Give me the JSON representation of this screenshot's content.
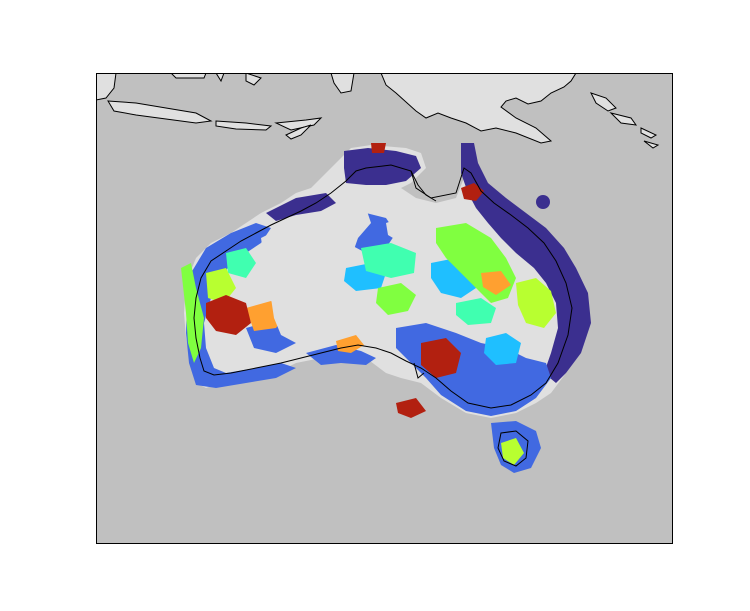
{
  "figure": {
    "type": "map",
    "region": "Australia",
    "projection_note": "",
    "colors": {
      "ocean": "#c0c0c0",
      "land": "#e0e0e0",
      "coastline": "#000000",
      "frame": "#000000",
      "class_palette": [
        "#3b2f8f",
        "#4169e1",
        "#1fbfff",
        "#40ffb0",
        "#80ff40",
        "#b8ff30",
        "#ffa030",
        "#b22010"
      ]
    },
    "layers": [
      "ocean-background",
      "land-outline",
      "classified-raster",
      "coastline"
    ]
  }
}
